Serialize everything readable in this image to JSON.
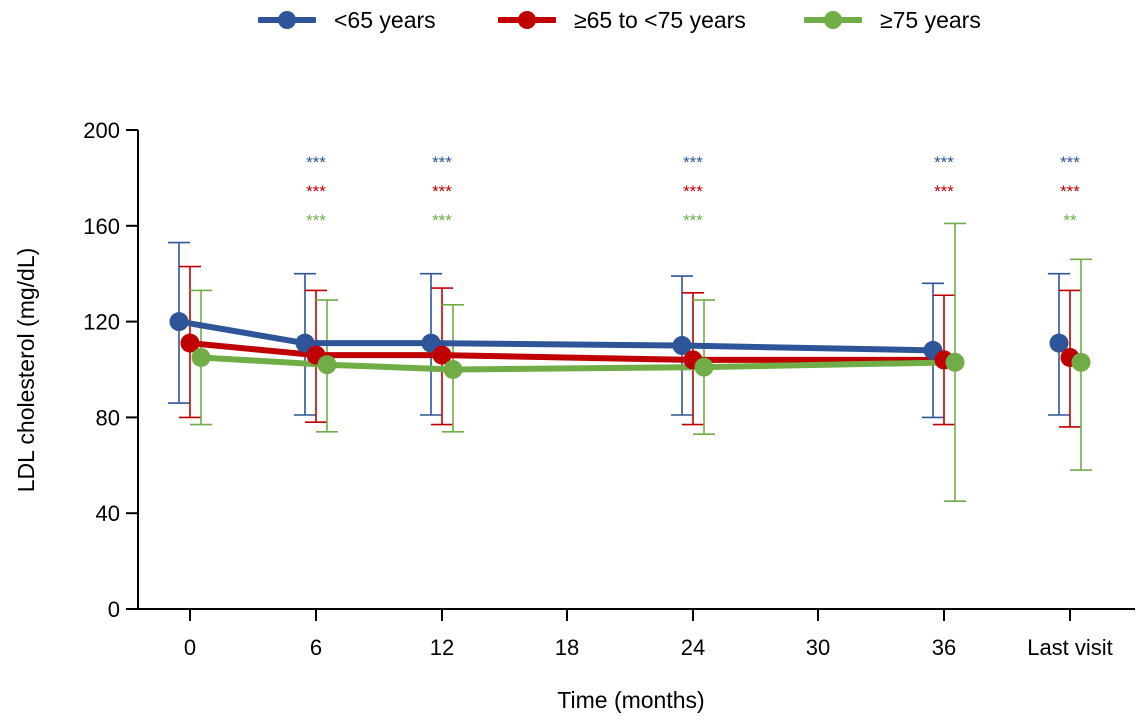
{
  "chart_data": {
    "type": "line",
    "xlabel": "Time (months)",
    "ylabel": "LDL cholesterol (mg/dL)",
    "ylim": [
      0,
      200
    ],
    "yticks": [
      0,
      40,
      80,
      120,
      160,
      200
    ],
    "xticks": [
      "0",
      "6",
      "12",
      "18",
      "24",
      "30",
      "36",
      "Last visit"
    ],
    "grid": false,
    "legend_position": "top",
    "series": [
      {
        "name": "<65 years",
        "color": "#2e5597",
        "x": [
          "0",
          "6",
          "12",
          "24",
          "36",
          "Last visit"
        ],
        "values": [
          120,
          111,
          111,
          110,
          108,
          111
        ],
        "error_upper": [
          153,
          140,
          140,
          139,
          136,
          140
        ],
        "error_lower": [
          86,
          81,
          81,
          81,
          80,
          81
        ],
        "significance": [
          "",
          "***",
          "***",
          "***",
          "***",
          "***"
        ]
      },
      {
        "name": "≥65 to <75 years",
        "color": "#c00000",
        "x": [
          "0",
          "6",
          "12",
          "24",
          "36",
          "Last visit"
        ],
        "values": [
          111,
          106,
          106,
          104,
          104,
          105
        ],
        "error_upper": [
          143,
          133,
          134,
          132,
          131,
          133
        ],
        "error_lower": [
          80,
          78,
          77,
          77,
          77,
          76
        ],
        "significance": [
          "",
          "***",
          "***",
          "***",
          "***",
          "***"
        ]
      },
      {
        "name": "≥75 years",
        "color": "#70ad47",
        "x": [
          "0",
          "6",
          "12",
          "24",
          "36",
          "Last visit"
        ],
        "values": [
          105,
          102,
          100,
          101,
          103,
          103
        ],
        "error_upper": [
          133,
          129,
          127,
          129,
          161,
          146
        ],
        "error_lower": [
          77,
          74,
          74,
          73,
          45,
          58
        ],
        "significance": [
          "",
          "***",
          "***",
          "***",
          "",
          "**"
        ]
      }
    ]
  }
}
